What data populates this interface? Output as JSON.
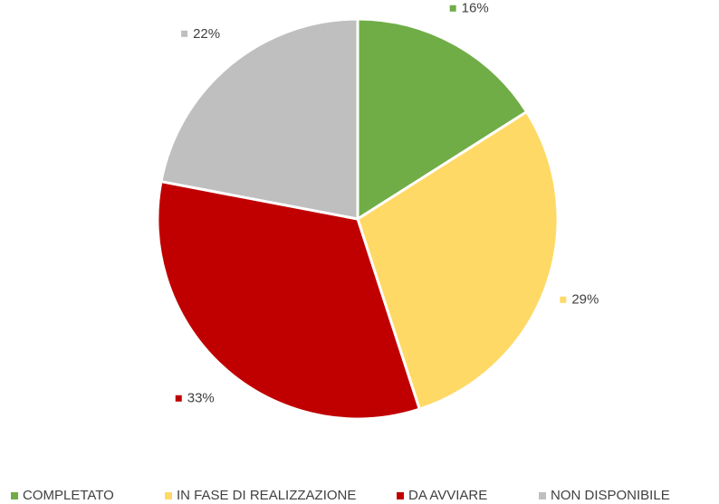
{
  "chart_data": {
    "type": "pie",
    "categories": [
      "COMPLETATO",
      "IN FASE DI REALIZZAZIONE",
      "DA AVVIARE",
      "NON DISPONIBILE"
    ],
    "values": [
      16,
      29,
      33,
      22
    ],
    "value_labels": [
      "16%",
      "29%",
      "33%",
      "22%"
    ],
    "colors": [
      "#70ad47",
      "#ffd966",
      "#c00000",
      "#bfbfbf"
    ],
    "legend": "bottom"
  }
}
